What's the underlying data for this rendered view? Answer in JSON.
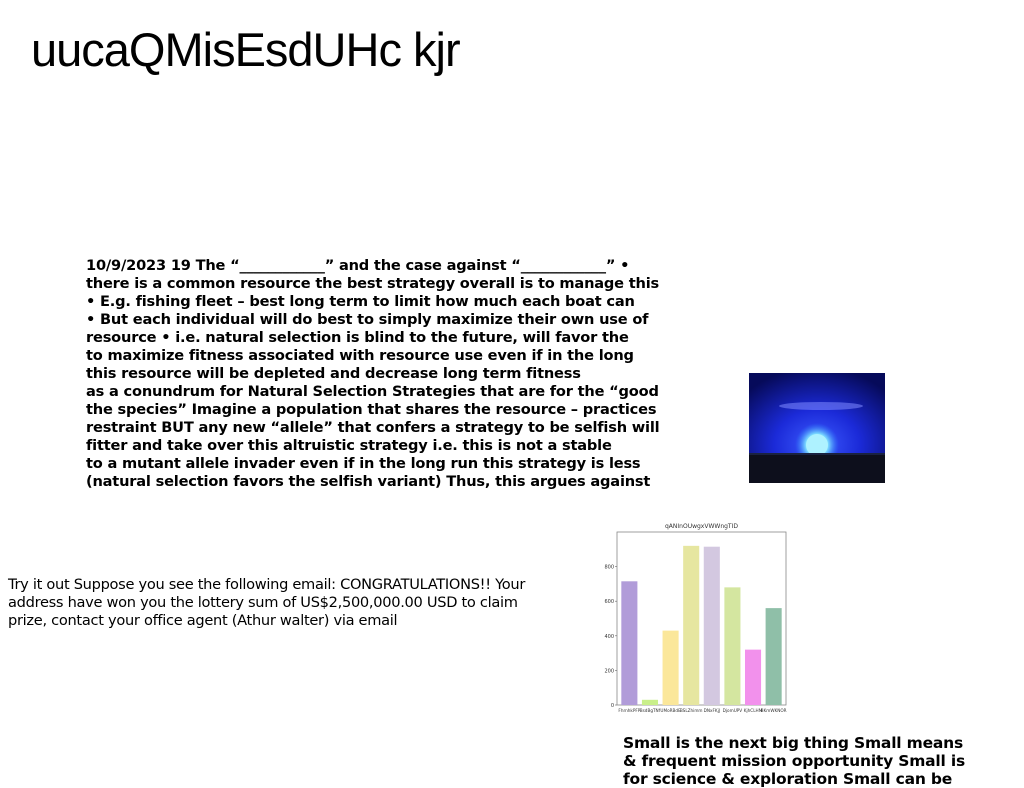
{
  "title": "uucaQMisEsdUHc kjr",
  "main_block": {
    "lines": [
      "10/9/2023 19 The “____________” and the case against “____________” •",
      "there is a common resource the best strategy overall is to manage this",
      "• E.g. fishing fleet – best long term to limit how much each boat can",
      "• But each individual will do best to simply maximize their own use of",
      "resource • i.e. natural selection is blind to the future, will favor the",
      "to maximize fitness associated with resource use even if in the long",
      "this resource will be depleted and decrease long term fitness",
      "as a conundrum for Natural Selection Strategies that are for the “good",
      "the species” Imagine a population that shares the resource – practices",
      "restraint BUT any new “allele” that confers a strategy to be selfish will",
      "fitter and take over this altruistic strategy i.e. this is not a stable",
      "to a mutant allele invader even if in the long run this strategy is less",
      "(natural selection favors the selfish variant) Thus, this argues against"
    ]
  },
  "email_paragraph": {
    "lines": [
      "Try it out Suppose you see the following email: CONGRATULATIONS!! Your",
      "address have won you the lottery sum of US$2,500,000.00 USD to claim",
      "prize, contact your office agent (Athur walter) via email"
    ]
  },
  "small_block": {
    "lines": [
      "Small is the next big thing Small means",
      "& frequent mission opportunity Small is",
      "for science & exploration Small can be"
    ]
  },
  "chart_data": {
    "type": "bar",
    "title": "qANInOUwgxVWWngTID",
    "categories": [
      "FhrnhkPFP",
      "BsdBgTNf",
      "UMoRBdE",
      "BSLZhimm",
      "DNxFKjJ",
      "DjomUPV",
      "KjhCLHM",
      "BKmWKNOR"
    ],
    "values": [
      715,
      30,
      430,
      920,
      915,
      680,
      320,
      560
    ],
    "colors": [
      "#b19cd9",
      "#c9ef8a",
      "#fbe79a",
      "#e6e6a0",
      "#d3c8e0",
      "#d4e6a0",
      "#f291ec",
      "#8fbfa8"
    ],
    "ylim": [
      0,
      1000
    ],
    "yticks": [
      0,
      200,
      400,
      600,
      800
    ]
  }
}
